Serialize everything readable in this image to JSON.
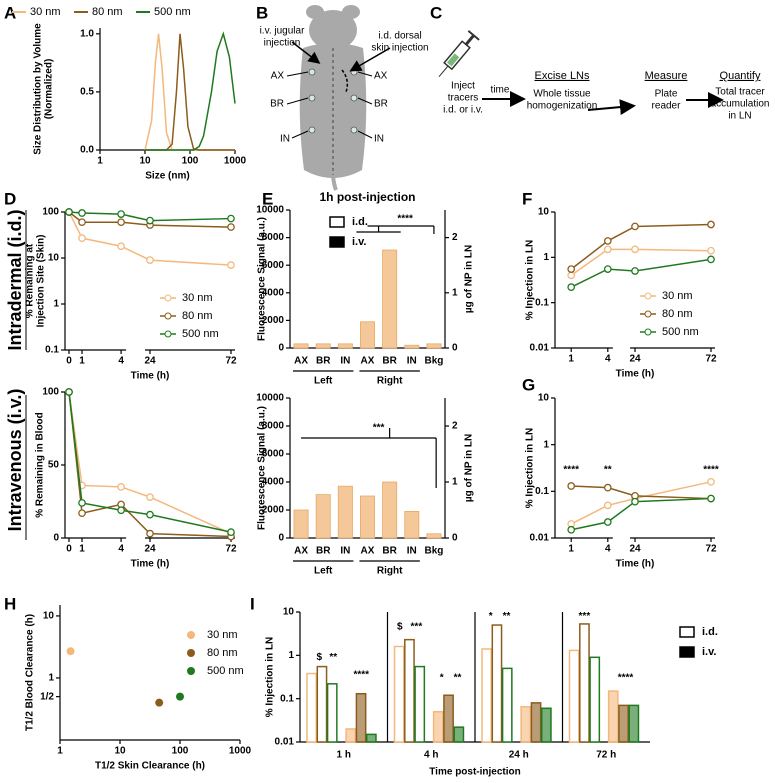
{
  "panels": [
    "A",
    "B",
    "C",
    "D",
    "E",
    "F",
    "G",
    "H",
    "I"
  ],
  "row_labels": [
    "Intradermal (i.d.)",
    "Intravenous (i.v.)"
  ],
  "diagram_b": {
    "injection_labels": [
      [
        "i.v. jugular",
        "injection"
      ],
      [
        "i.d. dorsal",
        "skin injection"
      ]
    ],
    "node_labels": [
      "AX",
      "BR",
      "IN"
    ]
  },
  "diagram_c": {
    "start": [
      "Inject",
      "tracers",
      "i.d. or i.v."
    ],
    "arrow_label": "time",
    "steps": [
      {
        "title": "Excise LNs",
        "text": [
          "Whole tissue",
          "homogenization"
        ]
      },
      {
        "title": "Measure",
        "text": [
          "Plate",
          "reader"
        ]
      },
      {
        "title": "Quantify",
        "text": [
          "Total tracer",
          "accumulation",
          "in LN"
        ]
      }
    ]
  },
  "chart_data": [
    {
      "type": "line",
      "legend": "top",
      "xlog": true,
      "xlim": [
        1,
        1000
      ],
      "xticks": [
        1,
        10,
        100,
        1000
      ],
      "xlabel": "Size (nm)",
      "ylim": [
        0,
        1.05
      ],
      "yticks": [
        {
          "value": 0,
          "label": "0.0"
        },
        {
          "value": 0.5,
          "label": "0.5"
        },
        {
          "value": 1,
          "label": "1.0"
        }
      ],
      "ylabel": [
        "Size Distribution by Volume",
        "(Normalized)"
      ],
      "x": [
        10,
        14,
        17,
        20,
        24,
        30,
        40,
        50,
        60,
        72,
        90,
        120,
        160,
        200,
        300,
        400,
        550,
        750,
        1000
      ],
      "series": [
        {
          "name": "30 nm",
          "color": "#f4b87c",
          "values": [
            0,
            0.25,
            0.75,
            1,
            0.7,
            0.15,
            0,
            0,
            0,
            0,
            0,
            0,
            0,
            0,
            0,
            0,
            0,
            0,
            0
          ]
        },
        {
          "name": "80 nm",
          "color": "#8c5c1c",
          "values": [
            0,
            0,
            0,
            0,
            0,
            0,
            0.05,
            0.5,
            1,
            0.7,
            0.2,
            0.01,
            0,
            0,
            0,
            0,
            0,
            0,
            0
          ]
        },
        {
          "name": "500 nm",
          "color": "#1f7a1f",
          "values": [
            0,
            0,
            0,
            0,
            0,
            0,
            0,
            0,
            0,
            0,
            0,
            0,
            0.03,
            0.12,
            0.5,
            0.85,
            1,
            0.8,
            0.4
          ]
        }
      ]
    },
    {
      "type": "line",
      "markers": "open",
      "legend": "lower right",
      "xbreak": [
        4,
        24
      ],
      "x": [
        0,
        1,
        4,
        24,
        72
      ],
      "xlim": [
        0,
        72
      ],
      "xticks": [
        0,
        1,
        4,
        24,
        72
      ],
      "xlabel": "Time (h)",
      "ylog": true,
      "ylim": [
        0.1,
        100
      ],
      "yticks": [
        0.1,
        1,
        10,
        100
      ],
      "ylabel": [
        "% Remaining at",
        "Injection Site (Skin)"
      ],
      "series": [
        {
          "name": "30 nm",
          "color": "#f4b87c",
          "values": [
            100,
            27,
            18,
            9,
            7
          ]
        },
        {
          "name": "80 nm",
          "color": "#8c5c1c",
          "values": [
            100,
            60,
            60,
            52,
            47
          ]
        },
        {
          "name": "500 nm",
          "color": "#1f7a1f",
          "values": [
            100,
            95,
            90,
            65,
            72
          ]
        }
      ]
    },
    {
      "type": "line",
      "markers": "open",
      "xbreak": [
        4,
        24
      ],
      "x": [
        0,
        1,
        4,
        24,
        72
      ],
      "xlim": [
        0,
        72
      ],
      "xticks": [
        0,
        1,
        4,
        24,
        72
      ],
      "xlabel": "Time (h)",
      "ylim": [
        0,
        100
      ],
      "yticks": [
        0,
        50,
        100
      ],
      "ylabel": "% Remaining in Blood",
      "series": [
        {
          "color": "#f4b87c",
          "values": [
            100,
            36,
            35,
            28,
            3
          ]
        },
        {
          "color": "#8c5c1c",
          "values": [
            100,
            17,
            23,
            3,
            1
          ]
        },
        {
          "color": "#1f7a1f",
          "values": [
            100,
            24,
            19,
            16,
            4
          ]
        }
      ]
    },
    {
      "type": "bar",
      "title": "1h post-injection",
      "categories": [
        "AX",
        "BR",
        "IN",
        "AX",
        "BR",
        "IN",
        "Bkg"
      ],
      "group_labels": [
        "Left",
        "Right"
      ],
      "values": [
        300,
        300,
        300,
        1900,
        7100,
        200,
        300
      ],
      "color": "#f5c89a",
      "ylim": [
        0,
        10000
      ],
      "yticks": [
        0,
        2000,
        4000,
        6000,
        8000,
        10000
      ],
      "ylabel": "Fluorescence Signal (a.u.)",
      "y2lim": [
        0,
        2.5
      ],
      "y2ticks": [
        0,
        1,
        2
      ],
      "y2label": "µg of NP in LN",
      "legend": [
        "i.d.",
        "i.v."
      ],
      "annotations": [
        "****"
      ]
    },
    {
      "type": "bar",
      "categories": [
        "AX",
        "BR",
        "IN",
        "AX",
        "BR",
        "IN",
        "Bkg"
      ],
      "group_labels": [
        "Left",
        "Right"
      ],
      "values": [
        2000,
        3100,
        3700,
        3000,
        4000,
        1900,
        300
      ],
      "color": "#f5c89a",
      "ylim": [
        0,
        10000
      ],
      "yticks": [
        0,
        2000,
        4000,
        6000,
        8000,
        10000
      ],
      "ylabel": "Fluorescence Signal (a.u.)",
      "y2lim": [
        0,
        2.5
      ],
      "y2ticks": [
        0,
        1,
        2
      ],
      "y2label": "µg of NP in LN",
      "annotations": [
        "***"
      ]
    },
    {
      "type": "line",
      "markers": "open",
      "legend": "lower right",
      "xbreak": [
        4,
        24
      ],
      "x": [
        1,
        4,
        24,
        72
      ],
      "xlim": [
        0,
        72
      ],
      "xticks": [
        1,
        4,
        24,
        72
      ],
      "xlabel": "Time (h)",
      "ylog": true,
      "ylim": [
        0.01,
        10
      ],
      "yticks": [
        0.01,
        0.1,
        1,
        10
      ],
      "ylabel": "% Injection in LN",
      "series": [
        {
          "name": "30 nm",
          "color": "#f4b87c",
          "values": [
            0.4,
            1.5,
            1.5,
            1.4
          ]
        },
        {
          "name": "80 nm",
          "color": "#8c5c1c",
          "values": [
            0.55,
            2.3,
            4.8,
            5.3
          ]
        },
        {
          "name": "500 nm",
          "color": "#1f7a1f",
          "values": [
            0.22,
            0.55,
            0.5,
            0.9
          ]
        }
      ]
    },
    {
      "type": "line",
      "markers": "open",
      "xbreak": [
        4,
        24
      ],
      "x": [
        1,
        4,
        24,
        72
      ],
      "xlim": [
        0,
        72
      ],
      "xticks": [
        1,
        4,
        24,
        72
      ],
      "xlabel": "Time (h)",
      "ylog": true,
      "ylim": [
        0.01,
        10
      ],
      "yticks": [
        0.01,
        0.1,
        1,
        10
      ],
      "ylabel": "% Injection in LN",
      "annotations": [
        "****",
        "**",
        "****"
      ],
      "series": [
        {
          "color": "#f4b87c",
          "values": [
            0.02,
            0.05,
            0.07,
            0.16
          ]
        },
        {
          "color": "#8c5c1c",
          "values": [
            0.13,
            0.12,
            0.08,
            0.07
          ]
        },
        {
          "color": "#1f7a1f",
          "values": [
            0.015,
            0.022,
            0.06,
            0.07
          ]
        }
      ]
    },
    {
      "type": "scatter",
      "legend": "right",
      "xlog": true,
      "xlim": [
        1,
        1000
      ],
      "xticks": [
        1,
        10,
        100,
        1000
      ],
      "xlabel": "T1/2 Skin Clearance (h)",
      "ylog": true,
      "ylim": [
        0.1,
        15
      ],
      "yticks": [
        {
          "value": 0.5,
          "label": "1/2"
        },
        1,
        10
      ],
      "ylabel": "T1/2 Blood Clearance (h)",
      "series": [
        {
          "name": "30 nm",
          "color": "#f4b87c",
          "x": [
            1.5
          ],
          "values": [
            2.7
          ]
        },
        {
          "name": "80 nm",
          "color": "#8c5c1c",
          "x": [
            45
          ],
          "values": [
            0.4
          ]
        },
        {
          "name": "500 nm",
          "color": "#1f7a1f",
          "x": [
            100
          ],
          "values": [
            0.5
          ]
        }
      ]
    },
    {
      "type": "groupbar",
      "categories": [
        "1 h",
        "4 h",
        "24 h",
        "72 h"
      ],
      "xlabel": "Time post-injection",
      "ylog": true,
      "ylim": [
        0.01,
        10
      ],
      "yticks": [
        0.01,
        0.1,
        1,
        10
      ],
      "ylabel": "% Injection in LN",
      "legend": [
        "i.d.",
        "i.v."
      ],
      "annotations": [
        [
          "$",
          "**",
          "****"
        ],
        [
          "$",
          "***",
          "*",
          "**"
        ],
        [
          "*",
          "**"
        ],
        [
          "***",
          "****"
        ]
      ],
      "series": [
        {
          "color": "#f4b87c",
          "style": "open",
          "values": [
            0.38,
            1.6,
            1.4,
            1.3
          ]
        },
        {
          "color": "#8c5c1c",
          "style": "open",
          "values": [
            0.55,
            2.3,
            5,
            5.3
          ]
        },
        {
          "color": "#1f7a1f",
          "style": "open",
          "values": [
            0.22,
            0.55,
            0.5,
            0.9
          ]
        },
        {
          "color": "#f4b87c",
          "style": "filled",
          "values": [
            0.02,
            0.05,
            0.065,
            0.15
          ]
        },
        {
          "color": "#8c5c1c",
          "style": "filled",
          "values": [
            0.13,
            0.12,
            0.08,
            0.07
          ]
        },
        {
          "color": "#1f7a1f",
          "style": "filled",
          "values": [
            0.015,
            0.022,
            0.06,
            0.07
          ]
        }
      ]
    }
  ]
}
